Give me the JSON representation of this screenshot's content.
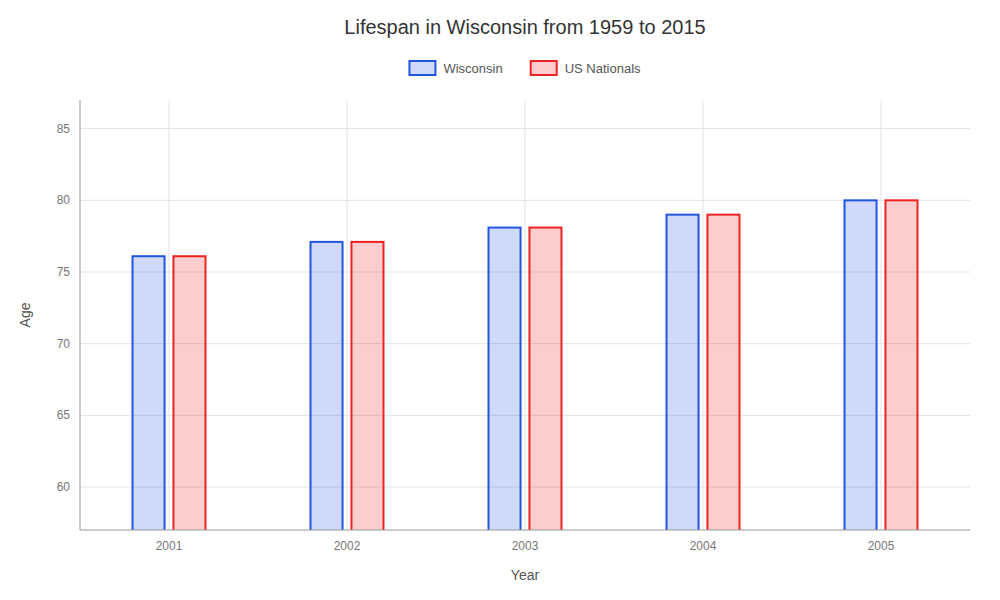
{
  "chart_data": {
    "type": "bar",
    "title": "Lifespan in Wisconsin from 1959 to 2015",
    "xlabel": "Year",
    "ylabel": "Age",
    "categories": [
      "2001",
      "2002",
      "2003",
      "2004",
      "2005"
    ],
    "series": [
      {
        "name": "Wisconsin",
        "color": "#2255dd",
        "values": [
          76.1,
          77.1,
          78.1,
          79.0,
          80.0
        ]
      },
      {
        "name": "US Nationals",
        "color": "#ee2222",
        "values": [
          76.1,
          77.1,
          78.1,
          79.0,
          80.0
        ]
      }
    ],
    "ylim": [
      57,
      87
    ],
    "yticks": [
      60,
      65,
      70,
      75,
      80,
      85
    ],
    "grid": true,
    "legend": "top"
  }
}
